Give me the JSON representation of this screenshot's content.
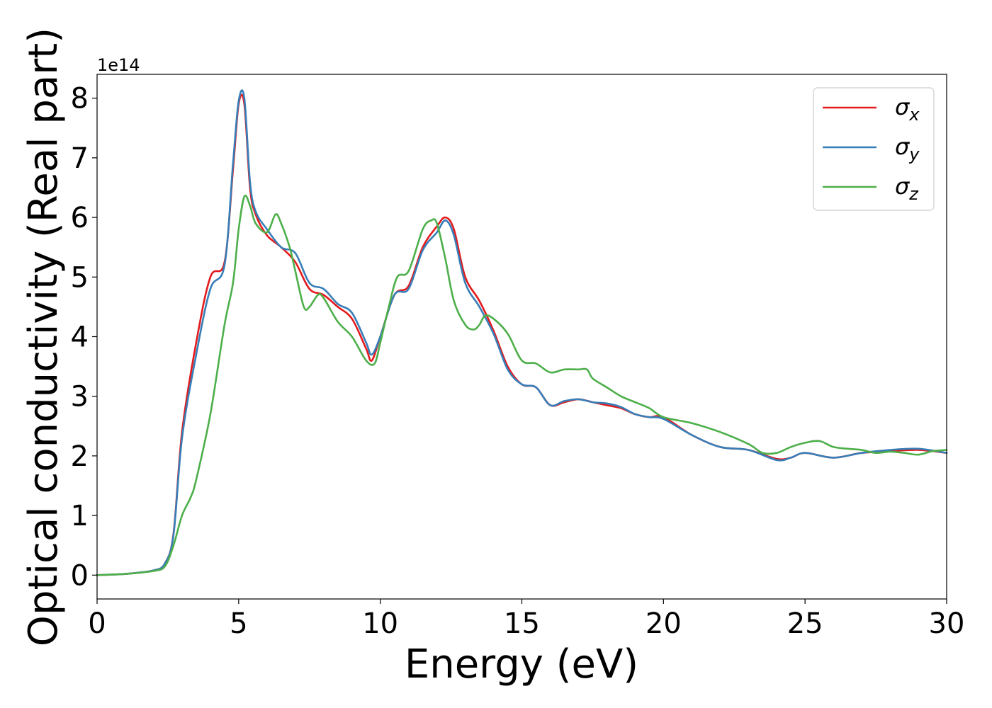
{
  "chart_data": {
    "type": "line",
    "title": "",
    "xlabel": "Energy (eV)",
    "ylabel": "Optical conductivity (Real part)",
    "y_offset_label": "1e14",
    "xlim": [
      0,
      30
    ],
    "ylim": [
      -0.4,
      8.4
    ],
    "xticks": [
      0,
      5,
      10,
      15,
      20,
      25,
      30
    ],
    "xtick_labels": [
      "0",
      "5",
      "10",
      "15",
      "20",
      "25",
      "30"
    ],
    "yticks": [
      0,
      1,
      2,
      3,
      4,
      5,
      6,
      7,
      8
    ],
    "ytick_labels": [
      "0",
      "1",
      "2",
      "3",
      "4",
      "5",
      "6",
      "7",
      "8"
    ],
    "grid": false,
    "legend_position": "top-right",
    "series": [
      {
        "name": "σx",
        "label_base": "σ",
        "label_sub": "x",
        "color": "#e41a1c",
        "x": [
          0,
          1,
          2,
          2.4,
          2.7,
          3,
          3.5,
          4,
          4.5,
          4.8,
          5,
          5.2,
          5.4,
          5.6,
          6,
          6.5,
          7,
          7.5,
          8,
          8.5,
          9,
          9.5,
          9.7,
          10,
          10.5,
          11,
          11.5,
          12,
          12.3,
          12.6,
          13,
          13.5,
          14,
          14.5,
          15,
          15.5,
          16,
          16.5,
          17,
          17.5,
          18,
          18.5,
          19,
          19.5,
          20,
          21,
          22,
          23,
          24,
          24.5,
          25,
          26,
          27,
          28,
          29,
          30
        ],
        "values": [
          0,
          0.02,
          0.08,
          0.2,
          0.7,
          2.4,
          3.9,
          5.0,
          5.25,
          6.8,
          7.9,
          7.9,
          6.5,
          6.05,
          5.7,
          5.5,
          5.25,
          4.8,
          4.7,
          4.5,
          4.3,
          3.8,
          3.6,
          4.0,
          4.7,
          4.85,
          5.5,
          5.85,
          6.0,
          5.8,
          5.0,
          4.6,
          4.1,
          3.5,
          3.2,
          3.15,
          2.85,
          2.9,
          2.95,
          2.9,
          2.85,
          2.8,
          2.7,
          2.65,
          2.65,
          2.35,
          2.15,
          2.1,
          1.95,
          1.97,
          2.05,
          1.97,
          2.05,
          2.08,
          2.1,
          2.05
        ]
      },
      {
        "name": "σy",
        "label_base": "σ",
        "label_sub": "y",
        "color": "#377eb8",
        "x": [
          0,
          1,
          2,
          2.4,
          2.7,
          3,
          3.5,
          4,
          4.5,
          4.8,
          5,
          5.2,
          5.4,
          5.6,
          6,
          6.5,
          7,
          7.5,
          8,
          8.5,
          9,
          9.5,
          9.7,
          10,
          10.5,
          11,
          11.5,
          12,
          12.3,
          12.6,
          13,
          13.5,
          14,
          14.5,
          15,
          15.5,
          16,
          16.5,
          17,
          17.5,
          18,
          18.5,
          19,
          19.5,
          20,
          21,
          22,
          23,
          24,
          24.5,
          25,
          26,
          27,
          28,
          29,
          30
        ],
        "values": [
          0,
          0.02,
          0.08,
          0.2,
          0.68,
          2.3,
          3.7,
          4.8,
          5.2,
          6.9,
          7.95,
          8.0,
          6.6,
          6.1,
          5.8,
          5.5,
          5.4,
          4.9,
          4.8,
          4.55,
          4.4,
          3.9,
          3.7,
          4.0,
          4.7,
          4.8,
          5.45,
          5.75,
          5.95,
          5.7,
          4.9,
          4.5,
          4.05,
          3.45,
          3.2,
          3.15,
          2.85,
          2.92,
          2.95,
          2.9,
          2.88,
          2.82,
          2.7,
          2.65,
          2.62,
          2.35,
          2.15,
          2.1,
          1.93,
          1.97,
          2.05,
          1.97,
          2.05,
          2.1,
          2.12,
          2.05
        ]
      },
      {
        "name": "σz",
        "label_base": "σ",
        "label_sub": "z",
        "color": "#4daf4a",
        "x": [
          0,
          1,
          2,
          2.4,
          2.7,
          3,
          3.3,
          3.5,
          4,
          4.5,
          4.8,
          5,
          5.2,
          5.4,
          5.6,
          6,
          6.3,
          6.5,
          6.8,
          7,
          7.3,
          7.5,
          7.8,
          8,
          8.5,
          9,
          9.5,
          9.8,
          10,
          10.3,
          10.6,
          11,
          11.5,
          11.8,
          12,
          12.3,
          12.6,
          13,
          13.3,
          13.5,
          13.7,
          14,
          14.5,
          15,
          15.5,
          16,
          16.5,
          17,
          17.3,
          17.5,
          18,
          18.5,
          19,
          19.5,
          20,
          21,
          22,
          23,
          23.5,
          24,
          24.5,
          25,
          25.5,
          26,
          26.5,
          27,
          27.5,
          28,
          28.5,
          29,
          29.5,
          30
        ],
        "values": [
          0,
          0.02,
          0.07,
          0.15,
          0.5,
          1.0,
          1.3,
          1.6,
          2.7,
          4.2,
          4.9,
          5.8,
          6.35,
          6.2,
          5.9,
          5.75,
          6.05,
          5.9,
          5.5,
          5.1,
          4.5,
          4.5,
          4.7,
          4.65,
          4.25,
          4.0,
          3.6,
          3.55,
          3.9,
          4.5,
          5.0,
          5.1,
          5.8,
          5.95,
          5.9,
          5.3,
          4.6,
          4.2,
          4.12,
          4.2,
          4.35,
          4.3,
          4.05,
          3.6,
          3.55,
          3.4,
          3.45,
          3.45,
          3.45,
          3.3,
          3.15,
          3.0,
          2.9,
          2.8,
          2.65,
          2.55,
          2.4,
          2.2,
          2.05,
          2.05,
          2.15,
          2.22,
          2.25,
          2.15,
          2.12,
          2.1,
          2.05,
          2.07,
          2.05,
          2.02,
          2.08,
          2.1
        ]
      }
    ]
  }
}
